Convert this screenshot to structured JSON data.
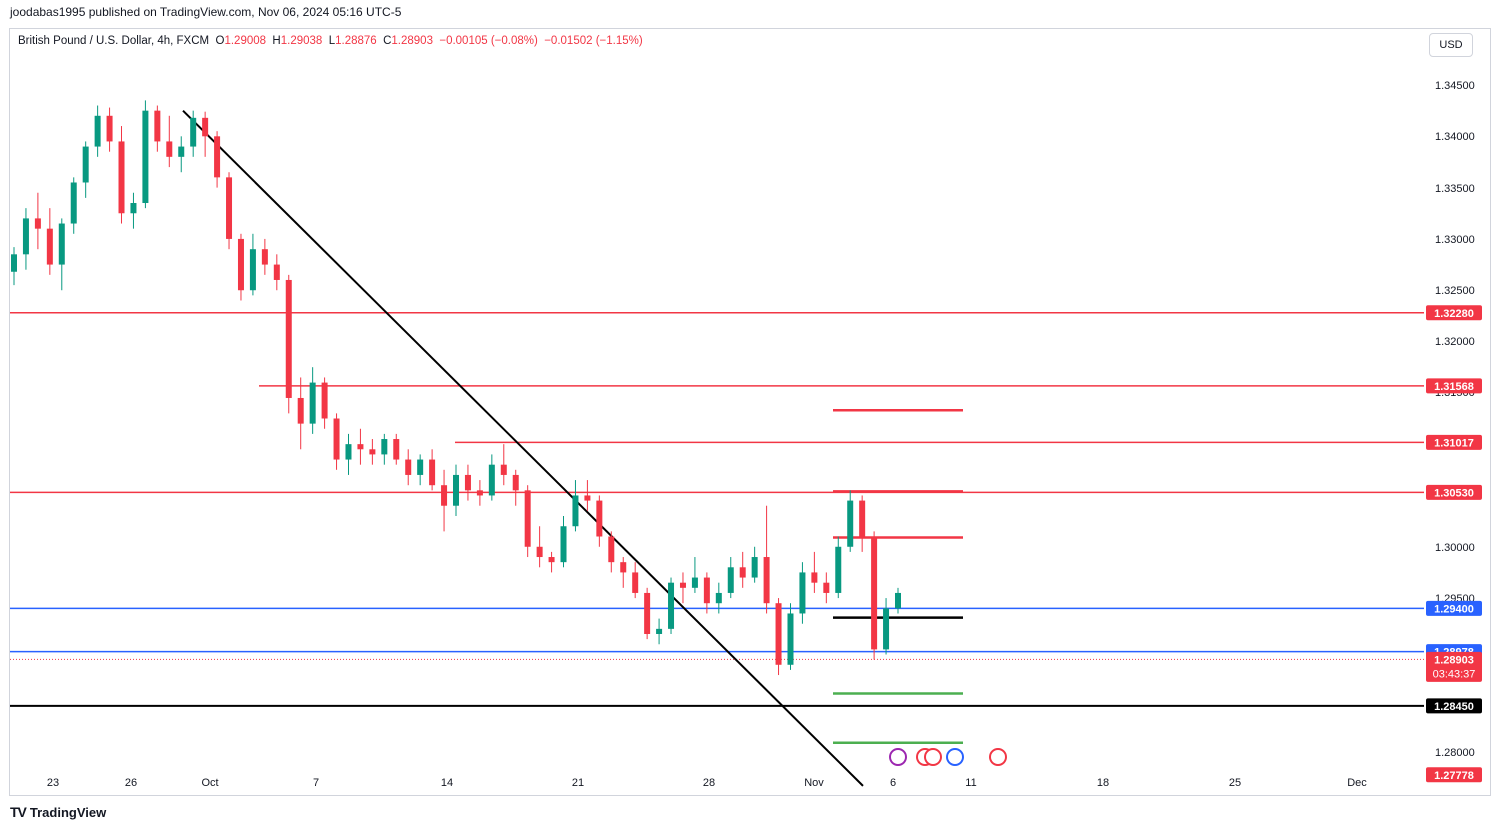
{
  "header": {
    "publisher_line": "joodabas1995 published on TradingView.com, Nov 06, 2024 05:16 UTC-5"
  },
  "legend": {
    "symbol": "British Pound / U.S. Dollar, 4h, FXCM",
    "o_label": "O",
    "o_value": "1.29008",
    "h_label": "H",
    "h_value": "1.29038",
    "l_label": "L",
    "l_value": "1.28876",
    "c_label": "C",
    "c_value": "1.28903",
    "change": "−0.00105 (−0.08%)",
    "change2": "−0.01502 (−1.15%)"
  },
  "currency_button": "USD",
  "footer": {
    "brand": "TradingView",
    "logo": "TV"
  },
  "colors": {
    "up": "#089981",
    "down": "#f23645",
    "resistance": "#f23645",
    "support_blue": "#2962ff",
    "black": "#000000",
    "green_target": "#4caf50"
  },
  "chart_data": {
    "type": "candlestick",
    "symbol": "GBPUSD",
    "timeframe": "4h",
    "ylim": [
      1.2768,
      1.3486
    ],
    "y_ticks": [
      "1.34500",
      "1.34000",
      "1.33500",
      "1.33000",
      "1.32500",
      "1.32000",
      "1.31500",
      "1.30000",
      "1.29500",
      "1.28000"
    ],
    "x_ticks": [
      "23",
      "26",
      "Oct",
      "7",
      "14",
      "21",
      "28",
      "Nov",
      "6",
      "11",
      "18",
      "25",
      "Dec"
    ],
    "price_levels": [
      {
        "label": "1.32280",
        "value": 1.3228,
        "color": "#f23645"
      },
      {
        "label": "1.31568",
        "value": 1.31568,
        "color": "#f23645"
      },
      {
        "label": "1.31017",
        "value": 1.31017,
        "color": "#f23645"
      },
      {
        "label": "1.30530",
        "value": 1.3053,
        "color": "#f23645"
      },
      {
        "label": "1.29400",
        "value": 1.294,
        "color": "#2962ff"
      },
      {
        "label": "1.28978",
        "value": 1.28978,
        "color": "#2962ff"
      },
      {
        "label": "1.28903",
        "value": 1.28903,
        "color": "#f23645",
        "countdown": "03:43:37"
      },
      {
        "label": "1.28450",
        "value": 1.2845,
        "color": "#000000"
      },
      {
        "label": "1.27778",
        "value": 1.27778,
        "color": "#f23645"
      }
    ],
    "target_segments": [
      {
        "value": 1.3133,
        "color": "#f23645"
      },
      {
        "value": 1.3054,
        "color": "#f23645"
      },
      {
        "value": 1.3009,
        "color": "#f23645"
      },
      {
        "value": 1.2931,
        "color": "#000000"
      },
      {
        "value": 1.2857,
        "color": "#4caf50"
      },
      {
        "value": 1.2809,
        "color": "#4caf50"
      }
    ],
    "trendline": {
      "from": {
        "date": "Sep 27",
        "price": 1.3425
      },
      "to": {
        "date": "Nov 4",
        "price": 1.2767
      }
    },
    "candles": [
      [
        1.3268,
        1.3292,
        1.3255,
        1.3285
      ],
      [
        1.3285,
        1.333,
        1.327,
        1.332
      ],
      [
        1.332,
        1.3345,
        1.329,
        1.331
      ],
      [
        1.331,
        1.333,
        1.3265,
        1.3275
      ],
      [
        1.3275,
        1.332,
        1.325,
        1.3315
      ],
      [
        1.3315,
        1.336,
        1.3305,
        1.3355
      ],
      [
        1.3355,
        1.3395,
        1.334,
        1.339
      ],
      [
        1.339,
        1.343,
        1.338,
        1.342
      ],
      [
        1.342,
        1.3428,
        1.3385,
        1.3395
      ],
      [
        1.3395,
        1.341,
        1.3315,
        1.3325
      ],
      [
        1.3325,
        1.3345,
        1.331,
        1.3335
      ],
      [
        1.3335,
        1.3435,
        1.333,
        1.3425
      ],
      [
        1.3425,
        1.343,
        1.3385,
        1.3395
      ],
      [
        1.3395,
        1.342,
        1.337,
        1.338
      ],
      [
        1.338,
        1.34,
        1.3365,
        1.339
      ],
      [
        1.339,
        1.3425,
        1.338,
        1.3418
      ],
      [
        1.3418,
        1.3424,
        1.338,
        1.34
      ],
      [
        1.34,
        1.3405,
        1.335,
        1.336
      ],
      [
        1.336,
        1.3365,
        1.329,
        1.33
      ],
      [
        1.33,
        1.3305,
        1.324,
        1.325
      ],
      [
        1.325,
        1.3305,
        1.3245,
        1.329
      ],
      [
        1.329,
        1.33,
        1.3265,
        1.3275
      ],
      [
        1.3275,
        1.3285,
        1.325,
        1.326
      ],
      [
        1.326,
        1.3265,
        1.313,
        1.3145
      ],
      [
        1.3145,
        1.3165,
        1.3095,
        1.312
      ],
      [
        1.312,
        1.3175,
        1.311,
        1.316
      ],
      [
        1.316,
        1.3165,
        1.3115,
        1.3125
      ],
      [
        1.3125,
        1.313,
        1.3075,
        1.3085
      ],
      [
        1.3085,
        1.311,
        1.307,
        1.31
      ],
      [
        1.31,
        1.3115,
        1.308,
        1.3095
      ],
      [
        1.3095,
        1.3105,
        1.308,
        1.309
      ],
      [
        1.309,
        1.311,
        1.308,
        1.3105
      ],
      [
        1.3105,
        1.311,
        1.308,
        1.3085
      ],
      [
        1.3085,
        1.3095,
        1.306,
        1.307
      ],
      [
        1.307,
        1.309,
        1.306,
        1.3085
      ],
      [
        1.3085,
        1.3095,
        1.3055,
        1.306
      ],
      [
        1.306,
        1.3075,
        1.3015,
        1.304
      ],
      [
        1.304,
        1.308,
        1.303,
        1.307
      ],
      [
        1.307,
        1.308,
        1.3045,
        1.3055
      ],
      [
        1.3055,
        1.3065,
        1.304,
        1.305
      ],
      [
        1.305,
        1.309,
        1.3045,
        1.308
      ],
      [
        1.308,
        1.31,
        1.306,
        1.307
      ],
      [
        1.307,
        1.3075,
        1.304,
        1.3055
      ],
      [
        1.3055,
        1.306,
        1.299,
        1.3
      ],
      [
        1.3,
        1.302,
        1.298,
        1.299
      ],
      [
        1.299,
        1.2995,
        1.2975,
        1.2985
      ],
      [
        1.2985,
        1.303,
        1.298,
        1.302
      ],
      [
        1.302,
        1.3065,
        1.3015,
        1.305
      ],
      [
        1.305,
        1.3065,
        1.3035,
        1.3045
      ],
      [
        1.3045,
        1.305,
        1.3,
        1.301
      ],
      [
        1.301,
        1.3015,
        1.2975,
        1.2985
      ],
      [
        1.2985,
        1.299,
        1.296,
        1.2975
      ],
      [
        1.2975,
        1.2985,
        1.295,
        1.2955
      ],
      [
        1.2955,
        1.296,
        1.291,
        1.2915
      ],
      [
        1.2915,
        1.293,
        1.2905,
        1.292
      ],
      [
        1.292,
        1.297,
        1.2915,
        1.2965
      ],
      [
        1.2965,
        1.2975,
        1.2945,
        1.296
      ],
      [
        1.296,
        1.299,
        1.2955,
        1.297
      ],
      [
        1.297,
        1.2975,
        1.2935,
        1.2945
      ],
      [
        1.2945,
        1.2965,
        1.2935,
        1.2955
      ],
      [
        1.2955,
        1.299,
        1.295,
        1.298
      ],
      [
        1.298,
        1.2995,
        1.296,
        1.297
      ],
      [
        1.297,
        1.3,
        1.2965,
        1.299
      ],
      [
        1.299,
        1.304,
        1.2935,
        1.2945
      ],
      [
        1.2945,
        1.295,
        1.2875,
        1.2885
      ],
      [
        1.2885,
        1.2945,
        1.288,
        1.2935
      ],
      [
        1.2935,
        1.2985,
        1.2925,
        1.2975
      ],
      [
        1.2975,
        1.2995,
        1.2955,
        1.2965
      ],
      [
        1.2965,
        1.2975,
        1.2945,
        1.2955
      ],
      [
        1.2955,
        1.301,
        1.295,
        1.3
      ],
      [
        1.3,
        1.3055,
        1.2995,
        1.3045
      ],
      [
        1.3045,
        1.305,
        1.2995,
        1.301
      ],
      [
        1.301,
        1.3015,
        1.289,
        1.29
      ],
      [
        1.29,
        1.295,
        1.2895,
        1.294
      ],
      [
        1.294,
        1.296,
        1.2935,
        1.2955
      ]
    ]
  }
}
